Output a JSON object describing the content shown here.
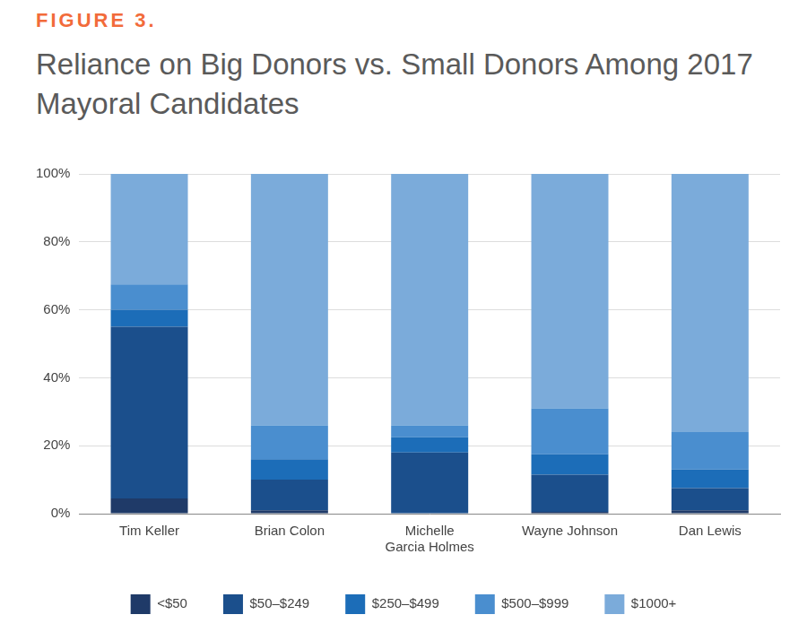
{
  "chart_data": {
    "type": "bar",
    "subtitle": "FIGURE 3.",
    "title": "Reliance on Big Donors vs. Small Donors Among 2017 Mayoral Candidates",
    "categories": [
      "Tim Keller",
      "Brian Colon",
      "Michelle Garcia Holmes",
      "Wayne Johnson",
      "Dan Lewis"
    ],
    "series": [
      {
        "name": "<$50",
        "color": "#1f3a68",
        "values": [
          4.5,
          1,
          0,
          0.5,
          1
        ]
      },
      {
        "name": "$50–$249",
        "color": "#1b4f8c",
        "values": [
          50.5,
          9,
          18,
          11,
          6.5
        ]
      },
      {
        "name": "$250–$499",
        "color": "#1c6db8",
        "values": [
          5,
          6,
          4.5,
          6,
          5.5
        ]
      },
      {
        "name": "$500–$999",
        "color": "#4a8ecf",
        "values": [
          7.5,
          10,
          3.5,
          13.5,
          11
        ]
      },
      {
        "name": "$1000+",
        "color": "#7babda",
        "values": [
          32.5,
          74,
          74,
          69,
          76
        ]
      }
    ],
    "stacked": true,
    "ylim": [
      0,
      100
    ],
    "yticks": [
      {
        "value": 0,
        "label": "0%"
      },
      {
        "value": 20,
        "label": "20%"
      },
      {
        "value": 40,
        "label": "40%"
      },
      {
        "value": 60,
        "label": "60%"
      },
      {
        "value": 80,
        "label": "80%"
      },
      {
        "value": 100,
        "label": "100%"
      }
    ],
    "grid": true,
    "legend": "bottom"
  }
}
